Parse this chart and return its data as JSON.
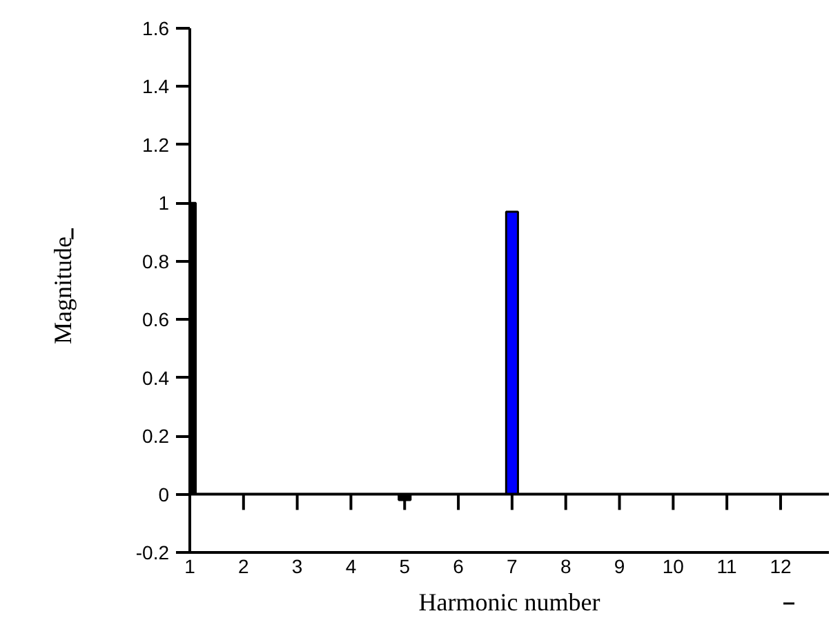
{
  "chart_data": {
    "type": "bar",
    "xlabel": "Harmonic number",
    "ylabel": "Magnitude",
    "x": [
      1,
      2,
      3,
      4,
      5,
      6,
      7,
      8,
      9,
      10,
      11,
      12
    ],
    "values": [
      1,
      0,
      0,
      0,
      -0.02,
      0,
      0.97,
      0,
      0,
      0,
      0,
      0
    ],
    "colors": [
      "#000000",
      "#000000",
      "#000000",
      "#000000",
      "#000000",
      "#000000",
      "#0000ff",
      "#000000",
      "#000000",
      "#000000",
      "#000000",
      "#000000"
    ],
    "xlim": [
      1,
      12.9
    ],
    "xticks": [
      1,
      2,
      3,
      4,
      5,
      6,
      7,
      8,
      9,
      10,
      11,
      12
    ],
    "ylim": [
      -0.2,
      1.6
    ],
    "yticks": [
      -0.2,
      0,
      0.2,
      0.4,
      0.6,
      0.8,
      1,
      1.2,
      1.4,
      1.6
    ],
    "ref_lines": [
      {
        "axis": "y",
        "value": 0,
        "label": null,
        "color": "#000000"
      }
    ],
    "grid": false
  }
}
